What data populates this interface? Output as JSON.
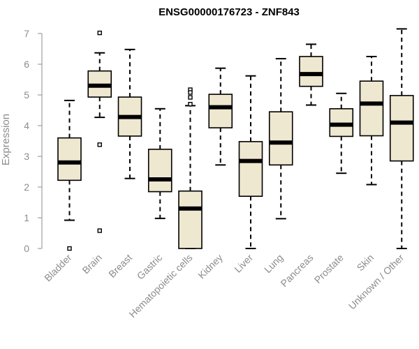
{
  "chart_data": {
    "type": "boxplot",
    "title": "ENSG00000176723 - ZNF843",
    "ylabel": "Expression",
    "xlabel": "",
    "ylim": [
      0,
      7
    ],
    "yticks": [
      0,
      1,
      2,
      3,
      4,
      5,
      6,
      7
    ],
    "colors": {
      "box_fill": "#efe8d0",
      "median": "#000000",
      "axis": "#8c8c8c"
    },
    "categories": [
      "Bladder",
      "Brain",
      "Breast",
      "Gastric",
      "Hematopoietic cells",
      "Kidney",
      "Liver",
      "Lung",
      "Pancreas",
      "Prostate",
      "Skin",
      "Unknown / Other"
    ],
    "boxes": [
      {
        "name": "Bladder",
        "min": 0.92,
        "q1": 2.22,
        "median": 2.8,
        "q3": 3.6,
        "max": 4.82,
        "outliers": [
          0.0
        ]
      },
      {
        "name": "Brain",
        "min": 4.27,
        "q1": 4.93,
        "median": 5.3,
        "q3": 5.78,
        "max": 6.37,
        "outliers": [
          7.02,
          3.38,
          0.58
        ]
      },
      {
        "name": "Breast",
        "min": 2.28,
        "q1": 3.66,
        "median": 4.28,
        "q3": 4.93,
        "max": 6.48,
        "outliers": []
      },
      {
        "name": "Gastric",
        "min": 0.98,
        "q1": 1.85,
        "median": 2.25,
        "q3": 3.23,
        "max": 4.55,
        "outliers": []
      },
      {
        "name": "Hematopoietic cells",
        "min": 0.0,
        "q1": 0.0,
        "median": 1.3,
        "q3": 1.87,
        "max": 4.65,
        "outliers": [
          5.17,
          5.08,
          4.92,
          4.7
        ]
      },
      {
        "name": "Kidney",
        "min": 2.72,
        "q1": 3.93,
        "median": 4.6,
        "q3": 5.02,
        "max": 5.87,
        "outliers": []
      },
      {
        "name": "Liver",
        "min": 0.0,
        "q1": 1.7,
        "median": 2.85,
        "q3": 3.48,
        "max": 5.62,
        "outliers": []
      },
      {
        "name": "Lung",
        "min": 0.97,
        "q1": 2.72,
        "median": 3.45,
        "q3": 4.45,
        "max": 6.18,
        "outliers": []
      },
      {
        "name": "Pancreas",
        "min": 4.67,
        "q1": 5.28,
        "median": 5.68,
        "q3": 6.25,
        "max": 6.65,
        "outliers": []
      },
      {
        "name": "Prostate",
        "min": 2.45,
        "q1": 3.65,
        "median": 4.03,
        "q3": 4.55,
        "max": 5.05,
        "outliers": []
      },
      {
        "name": "Skin",
        "min": 2.08,
        "q1": 3.67,
        "median": 4.72,
        "q3": 5.45,
        "max": 6.25,
        "outliers": []
      },
      {
        "name": "Unknown / Other",
        "min": 0.0,
        "q1": 2.85,
        "median": 4.1,
        "q3": 4.98,
        "max": 7.15,
        "outliers": []
      }
    ]
  }
}
